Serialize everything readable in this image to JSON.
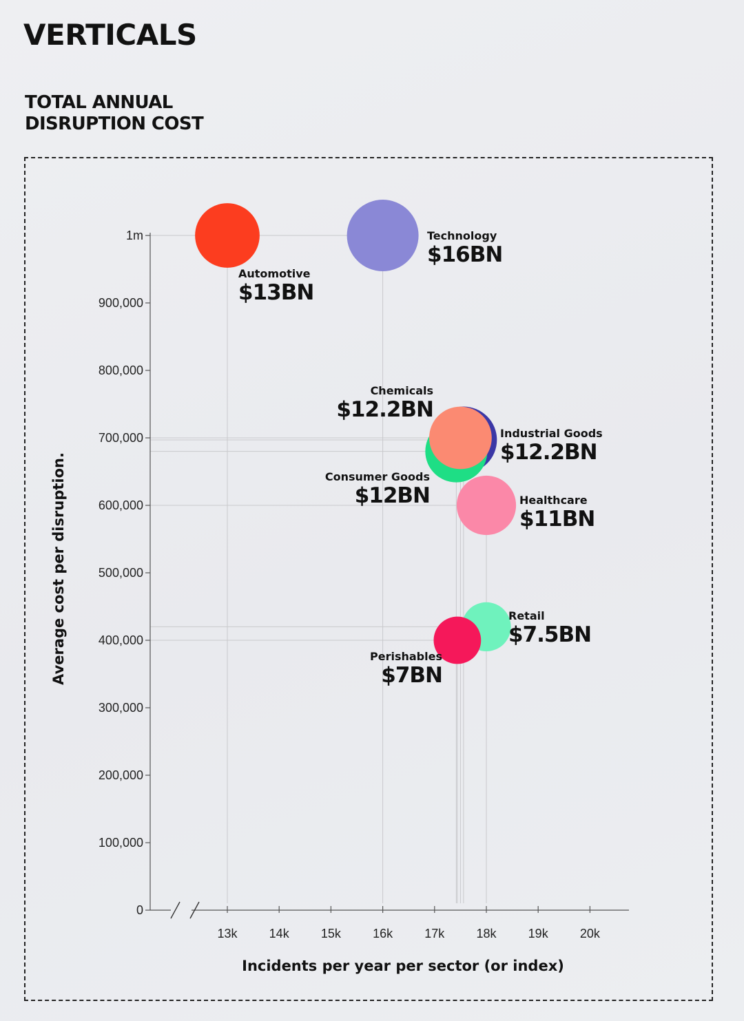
{
  "header": {
    "title": "VERTICALS",
    "subtitle_line1": "TOTAL ANNUAL",
    "subtitle_line2": "DISRUPTION COST"
  },
  "chart_data": {
    "type": "scatter",
    "title": "TOTAL ANNUAL DISRUPTION COST",
    "xlabel": "Incidents per year per sector (or index)",
    "ylabel": "Average cost per disruption.",
    "x_ticks": [
      "13k",
      "14k",
      "15k",
      "16k",
      "17k",
      "18k",
      "19k",
      "20k"
    ],
    "y_ticks": [
      "0",
      "100,000",
      "200,000",
      "300,000",
      "400,000",
      "500,000",
      "600,000",
      "700,000",
      "800,000",
      "900,000",
      "1m"
    ],
    "xlim": [
      11500,
      20000
    ],
    "ylim": [
      0,
      1000000
    ],
    "x_axis_break": true,
    "grid": false,
    "series": [
      {
        "name": "Technology",
        "x": 16000,
        "y": 1000000,
        "value_label": "$16BN",
        "size": 16,
        "color": "#8a88d6",
        "label_side": "right"
      },
      {
        "name": "Automotive",
        "x": 13000,
        "y": 1000000,
        "value_label": "$13BN",
        "size": 13,
        "color": "#fc3d1f",
        "label_side": "below-right"
      },
      {
        "name": "Consumer Goods",
        "x": 17420,
        "y": 680000,
        "value_label": "$12BN",
        "size": 12,
        "color": "#1ede85",
        "label_side": "left"
      },
      {
        "name": "Industrial Goods",
        "x": 17560,
        "y": 697000,
        "value_label": "$12.2BN",
        "size": 12.2,
        "color": "#3b37a6",
        "label_side": "right"
      },
      {
        "name": "Chemicals",
        "x": 17500,
        "y": 700000,
        "value_label": "$12.2BN",
        "size": 12.2,
        "color": "#fb8a72",
        "label_side": "above-left"
      },
      {
        "name": "Healthcare",
        "x": 18000,
        "y": 600000,
        "value_label": "$11BN",
        "size": 11,
        "color": "#fb88a8",
        "label_side": "right"
      },
      {
        "name": "Retail",
        "x": 18000,
        "y": 420000,
        "value_label": "$7.5BN",
        "size": 7.5,
        "color": "#6ff2bd",
        "label_side": "right"
      },
      {
        "name": "Perishables",
        "x": 17440,
        "y": 400000,
        "value_label": "$7BN",
        "size": 7,
        "color": "#f5185a",
        "label_side": "below-left"
      }
    ]
  }
}
